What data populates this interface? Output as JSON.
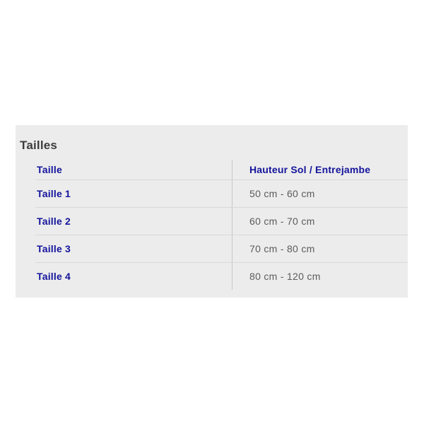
{
  "panel": {
    "title": "Tailles"
  },
  "table": {
    "columns": {
      "taille": "Taille",
      "hauteur": "Hauteur Sol / Entrejambe"
    },
    "rows": [
      {
        "taille": "Taille 1",
        "hauteur": "50 cm - 60 cm"
      },
      {
        "taille": "Taille 2",
        "hauteur": "60 cm - 70 cm"
      },
      {
        "taille": "Taille 3",
        "hauteur": "70 cm - 80 cm"
      },
      {
        "taille": "Taille 4",
        "hauteur": "80 cm - 120 cm"
      }
    ]
  },
  "colors": {
    "accent_blue": "#14149c",
    "title_gray": "#3c3c3c",
    "value_gray": "#5b5b5b",
    "panel_background": "#ececec",
    "row_separator": "#d8d8d8",
    "column_divider": "#c6c6c6"
  }
}
